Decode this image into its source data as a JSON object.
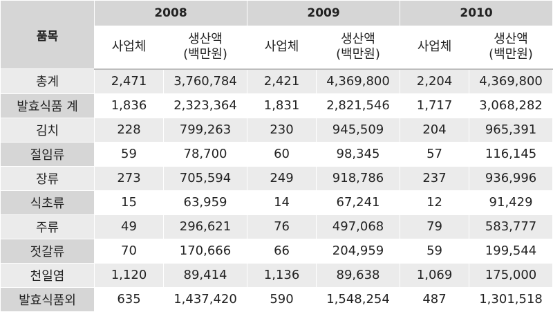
{
  "header": {
    "item_label": "품목",
    "years": [
      "2008",
      "2009",
      "2010"
    ],
    "sub_count": "사업체",
    "sub_value_line1": "생산액",
    "sub_value_line2": "(백만원)"
  },
  "rows": [
    {
      "item": "총계",
      "v": [
        "2,471",
        "3,760,784",
        "2,421",
        "4,369,800",
        "2,204",
        "4,369,800"
      ]
    },
    {
      "item": "발효식품 계",
      "v": [
        "1,836",
        "2,323,364",
        "1,831",
        "2,821,546",
        "1,717",
        "3,068,282"
      ]
    },
    {
      "item": "김치",
      "v": [
        "228",
        "799,263",
        "230",
        "945,509",
        "204",
        "965,391"
      ]
    },
    {
      "item": "절임류",
      "v": [
        "59",
        "78,700",
        "60",
        "98,345",
        "57",
        "116,145"
      ]
    },
    {
      "item": "장류",
      "v": [
        "273",
        "705,594",
        "249",
        "918,786",
        "237",
        "936,996"
      ]
    },
    {
      "item": "식초류",
      "v": [
        "15",
        "63,959",
        "14",
        "67,241",
        "12",
        "91,429"
      ]
    },
    {
      "item": "주류",
      "v": [
        "49",
        "296,621",
        "76",
        "497,068",
        "79",
        "583,777"
      ]
    },
    {
      "item": "젓갈류",
      "v": [
        "70",
        "170,666",
        "66",
        "204,959",
        "59",
        "199,544"
      ]
    },
    {
      "item": "천일염",
      "v": [
        "1,120",
        "89,414",
        "1,136",
        "89,638",
        "1,069",
        "175,000"
      ]
    },
    {
      "item": "발효식품외",
      "v": [
        "635",
        "1,437,420",
        "590",
        "1,548,254",
        "487",
        "1,301,518"
      ]
    }
  ]
}
